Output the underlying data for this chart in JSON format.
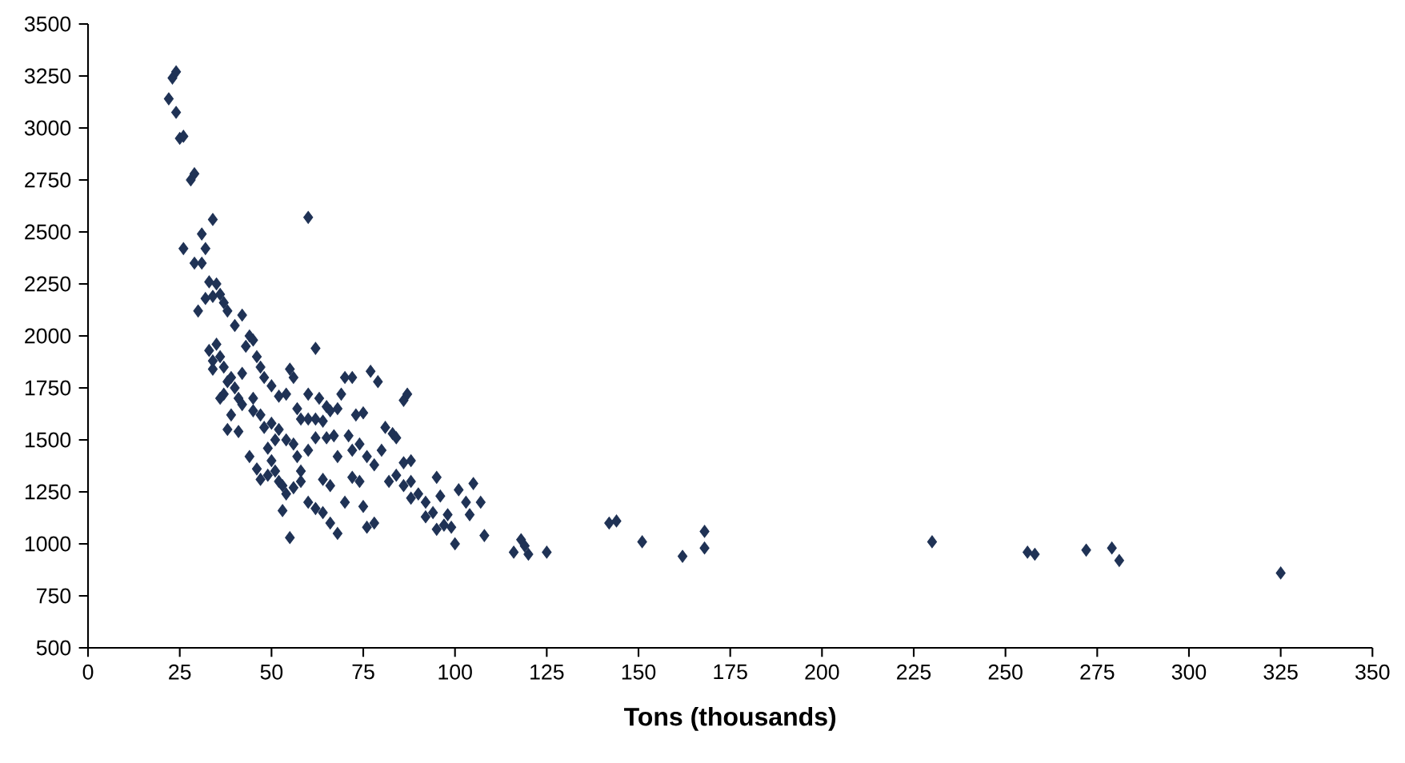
{
  "chart_data": {
    "type": "scatter",
    "xlabel": "Tons (thousands)",
    "marker": "diamond",
    "xlim": [
      0,
      350
    ],
    "xticks": [
      0,
      25,
      50,
      75,
      100,
      125,
      150,
      175,
      200,
      225,
      250,
      275,
      300,
      325,
      350
    ],
    "ylim": [
      500,
      3500
    ],
    "yticks": [
      500,
      750,
      1000,
      1250,
      1500,
      1750,
      2000,
      2250,
      2500,
      2750,
      3000,
      3250,
      3500
    ],
    "series": [
      {
        "color": "#1f3255",
        "x": [
          22,
          23,
          24,
          24,
          25,
          26,
          28,
          29,
          26,
          29,
          31,
          31,
          32,
          34,
          60,
          30,
          32,
          34,
          36,
          37,
          38,
          35,
          33,
          33,
          34,
          35,
          36,
          37,
          38,
          39,
          40,
          41,
          42,
          43,
          44,
          45,
          46,
          47,
          48,
          40,
          42,
          38,
          41,
          44,
          42,
          45,
          47,
          48,
          50,
          51,
          52,
          49,
          50,
          51,
          52,
          53,
          54,
          55,
          53,
          56,
          58,
          49,
          47,
          46,
          50,
          52,
          54,
          55,
          56,
          57,
          58,
          60,
          62,
          63,
          60,
          62,
          64,
          65,
          66,
          68,
          70,
          72,
          69,
          71,
          67,
          65,
          62,
          60,
          58,
          60,
          62,
          64,
          66,
          68,
          70,
          72,
          74,
          75,
          76,
          78,
          72,
          74,
          76,
          78,
          80,
          82,
          84,
          86,
          88,
          90,
          92,
          86,
          87,
          77,
          79,
          81,
          83,
          84,
          86,
          88,
          94,
          95,
          96,
          98,
          99,
          100,
          101,
          103,
          104,
          105,
          107,
          108,
          95,
          97,
          92,
          88,
          73,
          75,
          66,
          64,
          68,
          56,
          57,
          54,
          45,
          37,
          39,
          36,
          34,
          116,
          118,
          119,
          120,
          125,
          142,
          144,
          151,
          162,
          168,
          168,
          230,
          256,
          258,
          272,
          279,
          281,
          325
        ],
        "values": [
          3140,
          3240,
          3270,
          3075,
          2950,
          2960,
          2750,
          2780,
          2420,
          2350,
          2350,
          2490,
          2420,
          2560,
          2570,
          2120,
          2180,
          2190,
          2200,
          2160,
          2120,
          2250,
          2260,
          1930,
          1880,
          1960,
          1900,
          1850,
          1780,
          1800,
          1750,
          1700,
          1820,
          1950,
          2000,
          1980,
          1900,
          1850,
          1800,
          2050,
          2100,
          1550,
          1540,
          1420,
          1670,
          1640,
          1620,
          1560,
          1580,
          1500,
          1550,
          1460,
          1400,
          1350,
          1300,
          1280,
          1240,
          1030,
          1160,
          1270,
          1300,
          1330,
          1310,
          1360,
          1760,
          1710,
          1720,
          1840,
          1800,
          1650,
          1600,
          1600,
          1600,
          1700,
          1720,
          1940,
          1590,
          1660,
          1640,
          1650,
          1800,
          1800,
          1720,
          1520,
          1520,
          1510,
          1510,
          1450,
          1350,
          1200,
          1170,
          1150,
          1100,
          1050,
          1200,
          1320,
          1300,
          1180,
          1080,
          1100,
          1450,
          1480,
          1420,
          1380,
          1450,
          1300,
          1330,
          1280,
          1220,
          1240,
          1200,
          1690,
          1720,
          1830,
          1780,
          1560,
          1530,
          1510,
          1390,
          1400,
          1150,
          1320,
          1230,
          1140,
          1080,
          1000,
          1260,
          1200,
          1140,
          1290,
          1200,
          1040,
          1070,
          1090,
          1130,
          1300,
          1620,
          1630,
          1280,
          1310,
          1420,
          1480,
          1420,
          1500,
          1700,
          1720,
          1620,
          1700,
          1840,
          960,
          1020,
          990,
          950,
          960,
          1100,
          1110,
          1010,
          940,
          1060,
          980,
          1010,
          960,
          950,
          970,
          980,
          920,
          860
        ]
      }
    ]
  }
}
